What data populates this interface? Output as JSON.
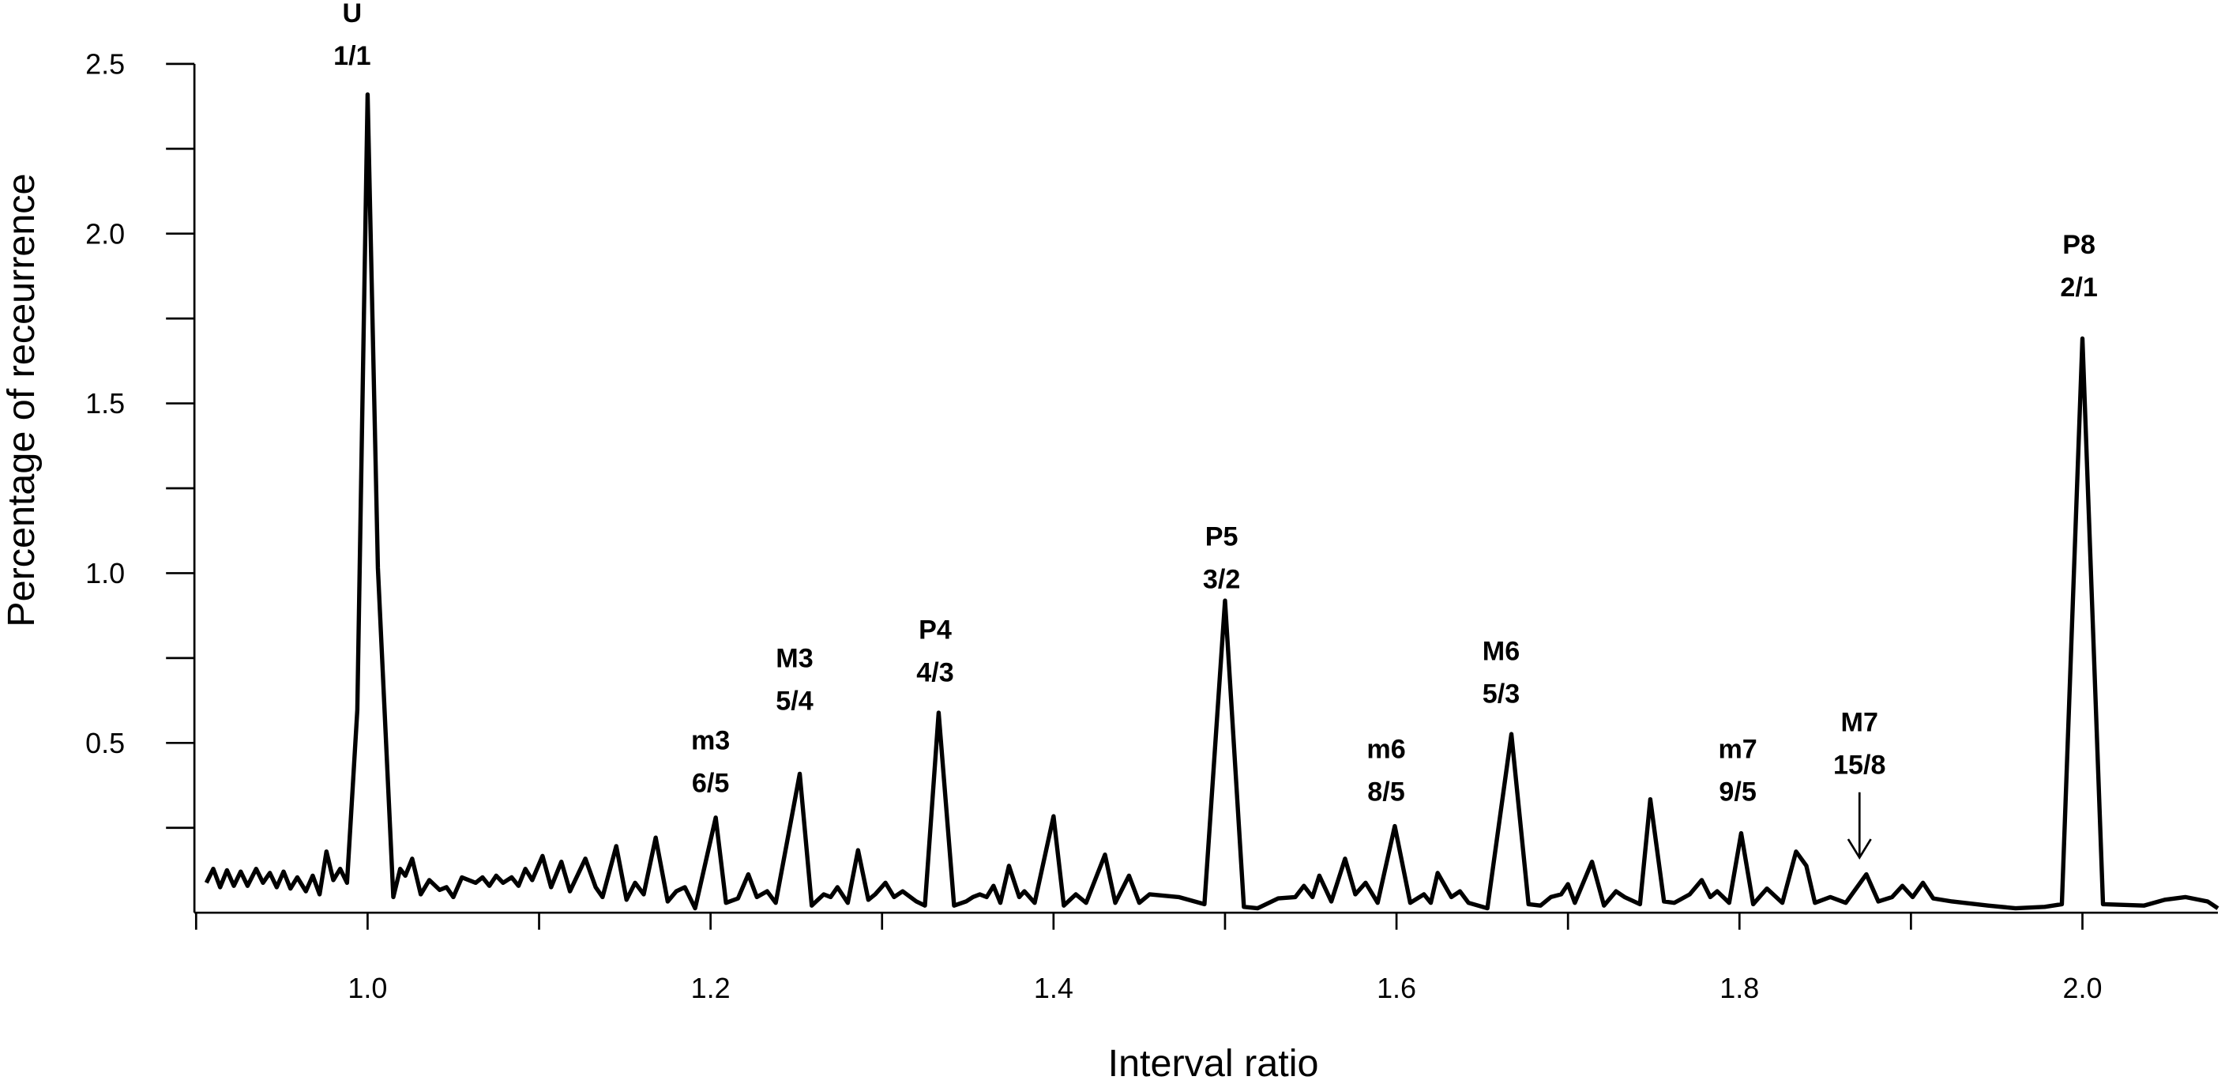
{
  "chart_data": {
    "type": "line",
    "xlabel": "Interval ratio",
    "ylabel": "Percentage of receurrence",
    "color": "#000000",
    "xlim": [
      0.899,
      2.079
    ],
    "ylim": [
      0,
      2.5
    ],
    "xticks": [
      {
        "value": 1.0,
        "label": "1.0"
      },
      1.2,
      1.4,
      1.6,
      1.8,
      {
        "value": 2.0,
        "label": "2.0"
      }
    ],
    "xticks_minor": [
      0.9,
      1.1,
      1.3,
      1.5,
      1.7,
      1.9
    ],
    "yticks": [
      0.5,
      {
        "value": 1.0,
        "label": "1.0"
      },
      1.5,
      {
        "value": 2.0,
        "label": "2.0"
      },
      2.5
    ],
    "yticks_minor": [
      0.25,
      0.75,
      1.25,
      1.75,
      2.25
    ],
    "x": [
      0.906,
      0.91,
      0.914,
      0.918,
      0.922,
      0.926,
      0.93,
      0.935,
      0.939,
      0.943,
      0.947,
      0.951,
      0.955,
      0.959,
      0.964,
      0.968,
      0.972,
      0.976,
      0.98,
      0.984,
      0.988,
      0.994,
      1.0,
      1.006,
      1.015,
      1.019,
      1.022,
      1.026,
      1.031,
      1.036,
      1.042,
      1.046,
      1.05,
      1.055,
      1.063,
      1.067,
      1.071,
      1.075,
      1.079,
      1.084,
      1.088,
      1.092,
      1.096,
      1.102,
      1.107,
      1.113,
      1.118,
      1.127,
      1.133,
      1.137,
      1.145,
      1.151,
      1.156,
      1.161,
      1.168,
      1.175,
      1.18,
      1.185,
      1.191,
      1.203,
      1.209,
      1.216,
      1.222,
      1.227,
      1.233,
      1.238,
      1.252,
      1.259,
      1.266,
      1.27,
      1.274,
      1.28,
      1.286,
      1.292,
      1.296,
      1.302,
      1.307,
      1.312,
      1.32,
      1.325,
      1.333,
      1.342,
      1.349,
      1.353,
      1.357,
      1.361,
      1.365,
      1.369,
      1.374,
      1.38,
      1.383,
      1.389,
      1.4,
      1.406,
      1.413,
      1.419,
      1.43,
      1.436,
      1.444,
      1.45,
      1.456,
      1.473,
      1.488,
      1.5,
      1.511,
      1.519,
      1.531,
      1.541,
      1.546,
      1.551,
      1.555,
      1.562,
      1.57,
      1.576,
      1.582,
      1.589,
      1.599,
      1.608,
      1.616,
      1.62,
      1.624,
      1.632,
      1.637,
      1.642,
      1.653,
      1.667,
      1.677,
      1.684,
      1.69,
      1.696,
      1.7,
      1.704,
      1.714,
      1.721,
      1.728,
      1.733,
      1.742,
      1.748,
      1.756,
      1.762,
      1.771,
      1.778,
      1.783,
      1.787,
      1.794,
      1.801,
      1.808,
      1.816,
      1.825,
      1.833,
      1.839,
      1.844,
      1.853,
      1.862,
      1.874,
      1.881,
      1.889,
      1.895,
      1.901,
      1.907,
      1.913,
      1.924,
      1.945,
      1.961,
      1.978,
      1.988,
      2.0,
      2.012,
      2.036,
      2.048,
      2.06,
      2.073,
      2.079
    ],
    "values": [
      0.088,
      0.129,
      0.075,
      0.125,
      0.079,
      0.121,
      0.079,
      0.129,
      0.088,
      0.117,
      0.075,
      0.121,
      0.071,
      0.104,
      0.063,
      0.109,
      0.054,
      0.18,
      0.096,
      0.129,
      0.088,
      0.597,
      2.41,
      1.015,
      0.046,
      0.129,
      0.109,
      0.159,
      0.054,
      0.096,
      0.067,
      0.075,
      0.046,
      0.104,
      0.088,
      0.104,
      0.079,
      0.109,
      0.088,
      0.104,
      0.079,
      0.129,
      0.096,
      0.167,
      0.075,
      0.15,
      0.063,
      0.159,
      0.075,
      0.046,
      0.196,
      0.038,
      0.088,
      0.054,
      0.221,
      0.033,
      0.063,
      0.075,
      0.013,
      0.28,
      0.029,
      0.042,
      0.113,
      0.046,
      0.063,
      0.029,
      0.409,
      0.021,
      0.054,
      0.046,
      0.075,
      0.029,
      0.184,
      0.038,
      0.054,
      0.088,
      0.046,
      0.063,
      0.033,
      0.021,
      0.589,
      0.021,
      0.033,
      0.046,
      0.054,
      0.046,
      0.079,
      0.029,
      0.138,
      0.046,
      0.063,
      0.029,
      0.284,
      0.021,
      0.054,
      0.029,
      0.171,
      0.029,
      0.109,
      0.029,
      0.054,
      0.046,
      0.025,
      0.919,
      0.017,
      0.013,
      0.042,
      0.046,
      0.079,
      0.046,
      0.109,
      0.033,
      0.159,
      0.054,
      0.088,
      0.029,
      0.255,
      0.029,
      0.054,
      0.029,
      0.117,
      0.046,
      0.063,
      0.029,
      0.013,
      0.526,
      0.025,
      0.021,
      0.046,
      0.054,
      0.084,
      0.029,
      0.15,
      0.021,
      0.063,
      0.046,
      0.025,
      0.334,
      0.033,
      0.029,
      0.054,
      0.096,
      0.046,
      0.063,
      0.029,
      0.234,
      0.025,
      0.071,
      0.029,
      0.18,
      0.138,
      0.029,
      0.046,
      0.029,
      0.113,
      0.033,
      0.046,
      0.079,
      0.046,
      0.088,
      0.042,
      0.033,
      0.021,
      0.013,
      0.017,
      0.025,
      1.691,
      0.025,
      0.021,
      0.038,
      0.046,
      0.033,
      0.013
    ],
    "annotations": [
      {
        "label": "U",
        "ratio": "1/1",
        "x": 0.991,
        "y": 2.497
      },
      {
        "label": "m3",
        "ratio": "6/5",
        "x": 1.2,
        "y": 0.355
      },
      {
        "label": "M3",
        "ratio": "5/4",
        "x": 1.249,
        "y": 0.597
      },
      {
        "label": "P4",
        "ratio": "4/3",
        "x": 1.331,
        "y": 0.681
      },
      {
        "label": "P5",
        "ratio": "3/2",
        "x": 1.498,
        "y": 0.956
      },
      {
        "label": "m6",
        "ratio": "8/5",
        "x": 1.594,
        "y": 0.33
      },
      {
        "label": "M6",
        "ratio": "5/3",
        "x": 1.661,
        "y": 0.618
      },
      {
        "label": "m7",
        "ratio": "9/5",
        "x": 1.799,
        "y": 0.33
      },
      {
        "label": "M7",
        "ratio": "15/8",
        "x": 1.87,
        "y": 0.409,
        "arrow": true
      },
      {
        "label": "P8",
        "ratio": "2/1",
        "x": 1.998,
        "y": 1.816
      }
    ]
  }
}
